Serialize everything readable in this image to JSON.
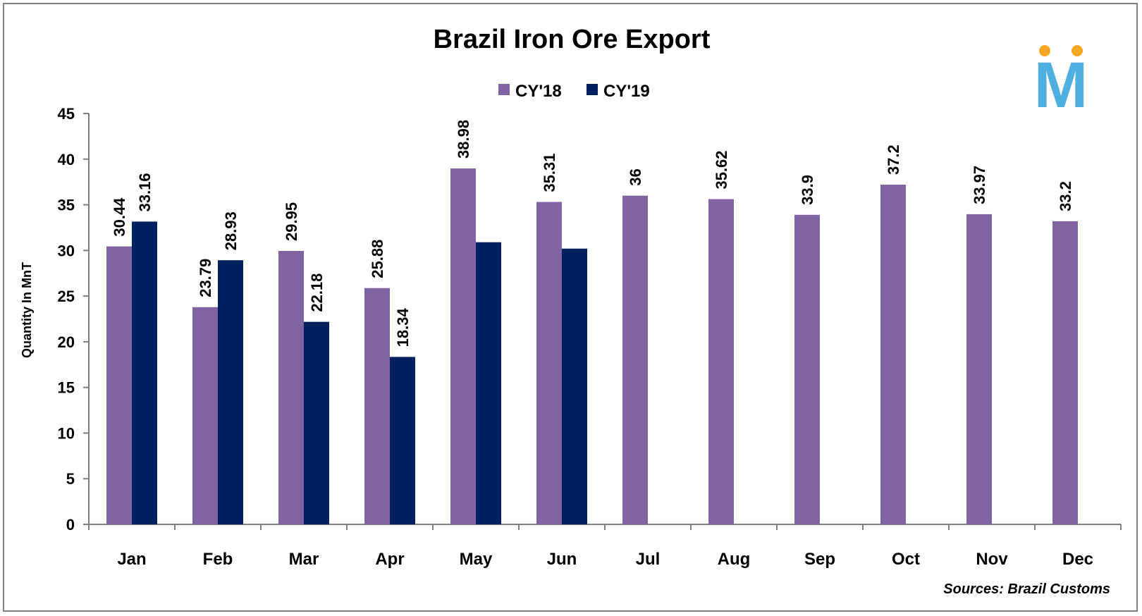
{
  "chart_data": {
    "type": "bar",
    "title": "Brazil Iron Ore Export",
    "ylabel": "Quantity In MnT",
    "xlabel": "",
    "ylim": [
      0,
      45
    ],
    "yticks": [
      0,
      5,
      10,
      15,
      20,
      25,
      30,
      35,
      40,
      45
    ],
    "grid": false,
    "legend_position": "top-center",
    "categories": [
      "Jan",
      "Feb",
      "Mar",
      "Apr",
      "May",
      "Jun",
      "Jul",
      "Aug",
      "Sep",
      "Oct",
      "Nov",
      "Dec"
    ],
    "series": [
      {
        "name": "CY'18",
        "color": "#8064a2",
        "values": [
          30.44,
          23.79,
          29.95,
          25.88,
          38.98,
          35.31,
          36,
          35.62,
          33.9,
          37.2,
          33.97,
          33.2
        ],
        "labels": [
          "30.44",
          "23.79",
          "29.95",
          "25.88",
          "38.98",
          "35.31",
          "36",
          "35.62",
          "33.9",
          "37.2",
          "33.97",
          "33.2"
        ]
      },
      {
        "name": "CY'19",
        "color": "#002060",
        "values": [
          33.16,
          28.93,
          22.18,
          18.34,
          30.9,
          30.2,
          null,
          null,
          null,
          null,
          null,
          null
        ],
        "labels": [
          "33.16",
          "28.93",
          "22.18",
          "18.34",
          "",
          "",
          "",
          "",
          "",
          "",
          "",
          ""
        ]
      }
    ],
    "source": "Sources: Brazil Customs"
  },
  "logo": {
    "letter": "M",
    "letter_color": "#4eaee0",
    "dot_color": "#f6a623"
  }
}
